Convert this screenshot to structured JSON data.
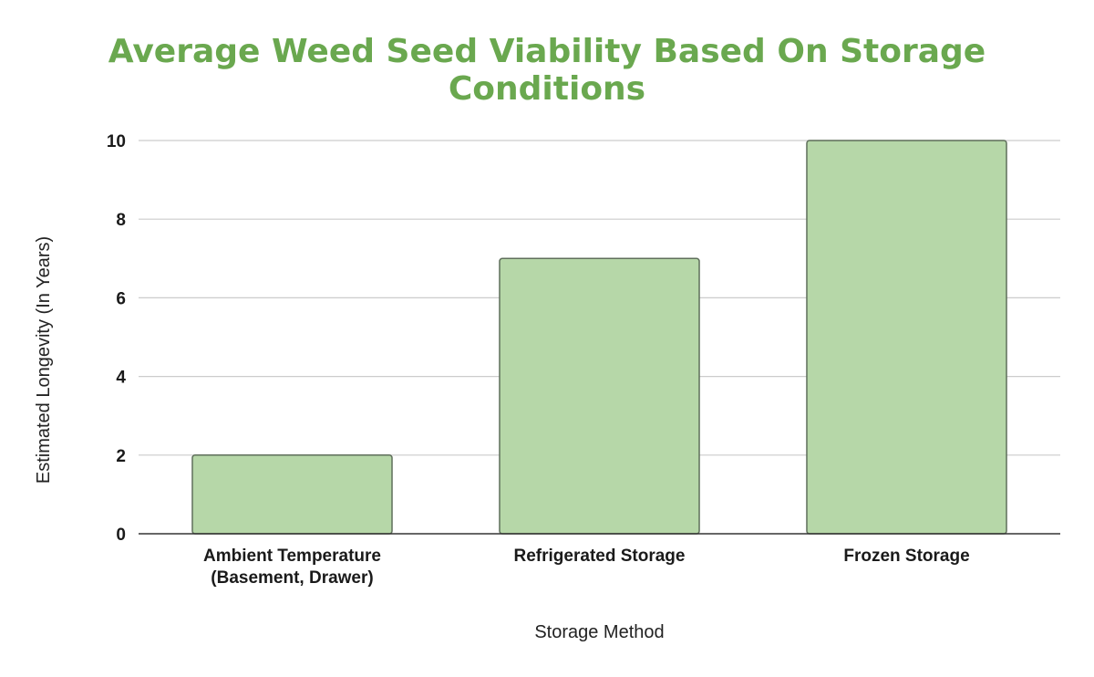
{
  "chart_data": {
    "type": "bar",
    "title_lines": [
      "Average Weed Seed Viability Based On Storage",
      "Conditions"
    ],
    "xlabel": "Storage Method",
    "ylabel": "Estimated Longevity (In Years)",
    "categories": [
      [
        "Ambient Temperature",
        "(Basement, Drawer)"
      ],
      [
        "Refrigerated Storage"
      ],
      [
        "Frozen Storage"
      ]
    ],
    "values": [
      2,
      7,
      10
    ],
    "ylim": [
      0,
      10
    ],
    "yticks": [
      "0",
      "2",
      "4",
      "6",
      "8",
      "10"
    ],
    "grid": true,
    "legend": "none"
  },
  "colors": {
    "title": "#6aa84f",
    "bar_fill": "#b6d7a8",
    "bar_stroke": "#5f6f5b",
    "grid": "#cccccc",
    "axis": "#333333"
  }
}
